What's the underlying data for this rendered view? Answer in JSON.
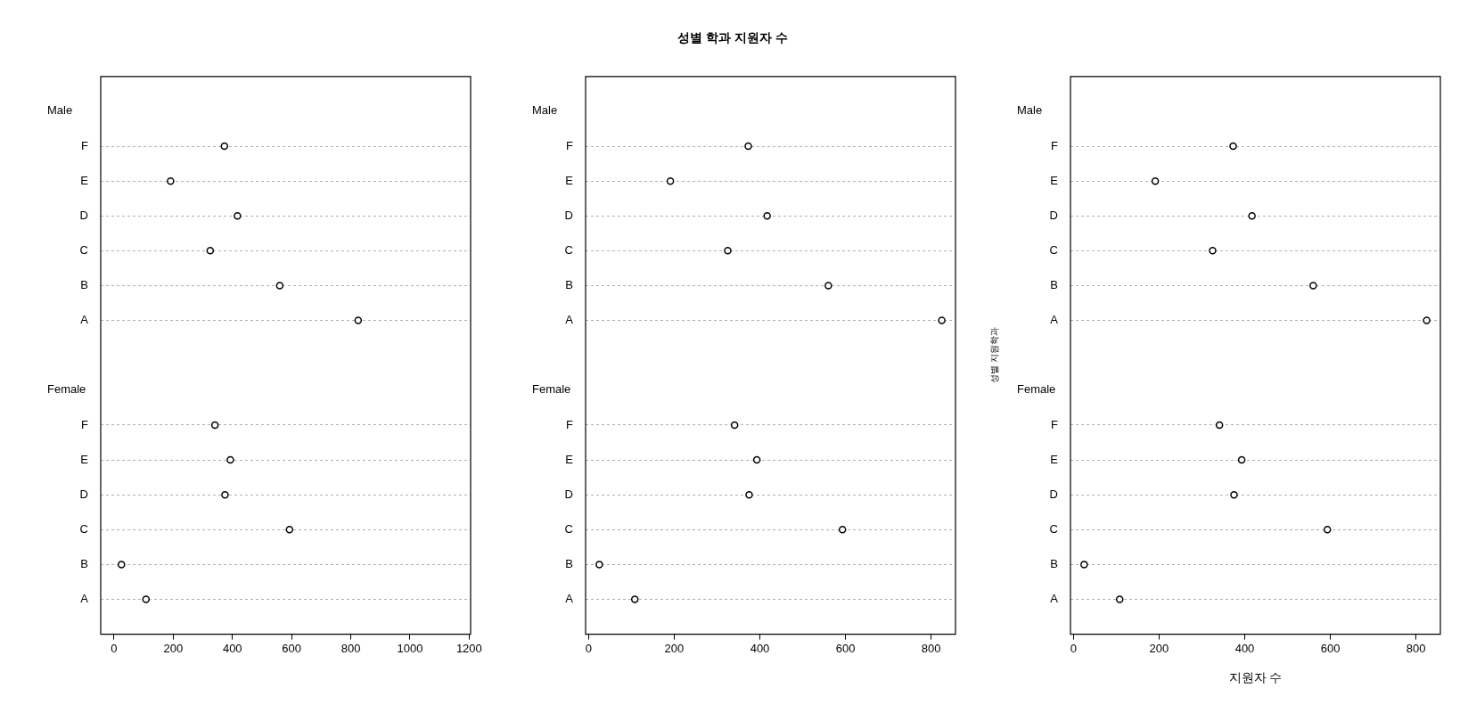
{
  "chart_data": [
    {
      "type": "scatter",
      "orientation": "horizontal",
      "categories": [
        "F",
        "E",
        "D",
        "C",
        "B",
        "A",
        "F",
        "E",
        "D",
        "C",
        "B",
        "A"
      ],
      "annotations": [
        "Male",
        "Female"
      ],
      "series": [
        {
          "color": "#000000",
          "values": [
            373,
            191,
            417,
            325,
            560,
            825,
            null,
            null,
            null,
            null,
            null,
            null
          ]
        },
        {
          "color": "#000000",
          "values": [
            null,
            null,
            null,
            null,
            null,
            null,
            341,
            393,
            375,
            593,
            25,
            108
          ]
        }
      ],
      "xlim": [
        -45,
        1205
      ],
      "xticks": [
        0,
        200,
        400,
        600,
        800,
        1000,
        1200
      ],
      "grid": "y",
      "marker": "circle",
      "legend": false
    },
    {
      "type": "scatter",
      "title": "성별 학과 지원자 수",
      "orientation": "horizontal",
      "categories": [
        "F",
        "E",
        "D",
        "C",
        "B",
        "A",
        "F",
        "E",
        "D",
        "C",
        "B",
        "A"
      ],
      "annotations": [
        "Male",
        "Female"
      ],
      "series": [
        {
          "color": "#000000",
          "values": [
            373,
            191,
            417,
            325,
            560,
            825,
            null,
            null,
            null,
            null,
            null,
            null
          ]
        },
        {
          "color": "#000000",
          "values": [
            null,
            null,
            null,
            null,
            null,
            null,
            341,
            393,
            375,
            593,
            25,
            108
          ]
        }
      ],
      "xlim": [
        -7,
        857
      ],
      "xticks": [
        0,
        200,
        400,
        600,
        800
      ],
      "grid": "y",
      "marker": "circle",
      "legend": false
    },
    {
      "type": "scatter",
      "xlabel": "지원자 수",
      "ylabel": "성별 지원학과",
      "orientation": "horizontal",
      "categories": [
        "F",
        "E",
        "D",
        "C",
        "B",
        "A",
        "F",
        "E",
        "D",
        "C",
        "B",
        "A"
      ],
      "annotations": [
        "Male",
        "Female"
      ],
      "series": [
        {
          "color": "#000000",
          "values": [
            373,
            191,
            417,
            325,
            560,
            825,
            null,
            null,
            null,
            null,
            null,
            null
          ]
        },
        {
          "color": "#000000",
          "values": [
            null,
            null,
            null,
            null,
            null,
            null,
            341,
            393,
            375,
            593,
            25,
            108
          ]
        }
      ],
      "xlim": [
        -7,
        857
      ],
      "xticks": [
        0,
        200,
        400,
        600,
        800
      ],
      "grid": "y",
      "marker": "circle",
      "legend": false
    }
  ]
}
